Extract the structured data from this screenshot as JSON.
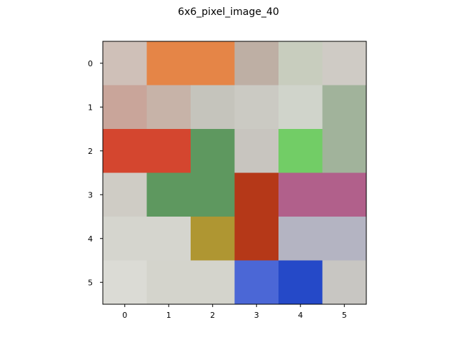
{
  "chart_data": {
    "type": "heatmap",
    "title": "6x6_pixel_image_40",
    "xlabel": "",
    "ylabel": "",
    "x_ticks": [
      "0",
      "1",
      "2",
      "3",
      "4",
      "5"
    ],
    "y_ticks": [
      "0",
      "1",
      "2",
      "3",
      "4",
      "5"
    ],
    "xlim": [
      -0.5,
      5.5
    ],
    "ylim": [
      5.5,
      -0.5
    ],
    "grid": false,
    "legend": "none",
    "colorbar": false,
    "cells": [
      [
        "#cfc0b8",
        "#e58547",
        "#e58547",
        "#beafa4",
        "#c8cdbe",
        "#cfcbc5"
      ],
      [
        "#c9a59a",
        "#c7b3a8",
        "#c5c4bc",
        "#cbcac3",
        "#d0d4cb",
        "#a1b39b"
      ],
      [
        "#d4462f",
        "#d4462f",
        "#5e985f",
        "#c8c5bf",
        "#72cd66",
        "#a1b39b"
      ],
      [
        "#cfccc5",
        "#5e985f",
        "#5e985f",
        "#b53818",
        "#b1608b",
        "#b1608b"
      ],
      [
        "#d5d5ce",
        "#d5d5ce",
        "#af9632",
        "#b53818",
        "#b4b4c2",
        "#b4b4c2"
      ],
      [
        "#dbdbd5",
        "#d4d4cc",
        "#d4d4cc",
        "#4b67d6",
        "#2549c8",
        "#c8c6c2"
      ]
    ]
  }
}
